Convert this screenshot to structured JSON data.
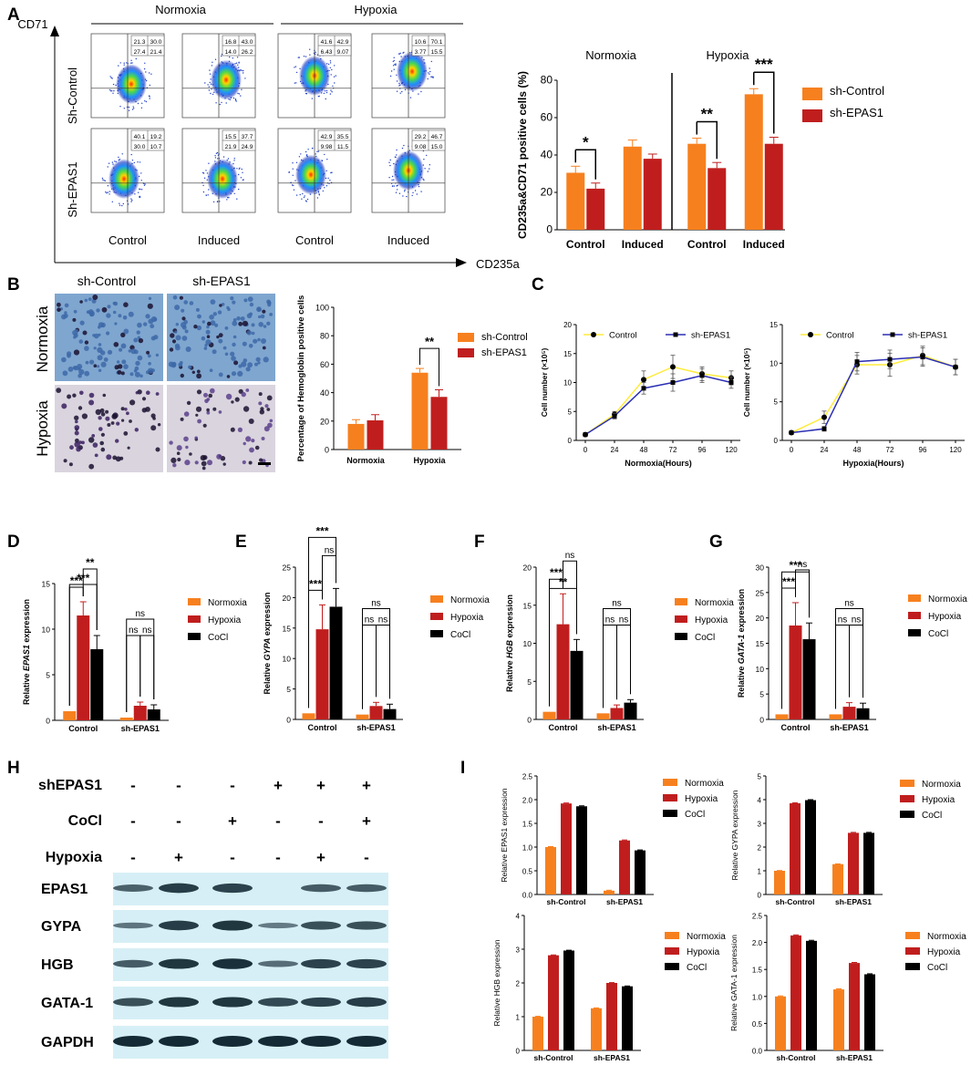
{
  "labels": [
    "A",
    "B",
    "C",
    "D",
    "E",
    "F",
    "G",
    "H",
    "I"
  ],
  "colors": {
    "orange": "#F7801E",
    "red": "#C01E1E",
    "black": "#000000",
    "yellow": "#FFEB3B",
    "blue": "#2B2FB3",
    "blot_bg": "#D6EFF6",
    "stain_top": "#7FA6CF",
    "stain_bottom": "#D9D4DE"
  },
  "panelA": {
    "y_axis_label": "CD71",
    "x_axis_label": "CD235a",
    "group_titles": [
      "Normoxia",
      "Hypoxia"
    ],
    "row_labels": [
      "Sh-Control",
      "Sh-EPAS1"
    ],
    "col_labels": [
      "Control",
      "Induced",
      "Control",
      "Induced"
    ],
    "quadrants": [
      [
        [
          "21.3",
          "30.0",
          "27.4",
          "21.4"
        ],
        [
          "16.8",
          "43.0",
          "14.0",
          "26.2"
        ],
        [
          "41.6",
          "42.9",
          "6.43",
          "9.07"
        ],
        [
          "10.6",
          "70.1",
          "3.77",
          "15.5"
        ]
      ],
      [
        [
          "40.1",
          "19.2",
          "30.0",
          "10.7"
        ],
        [
          "15.5",
          "37.7",
          "21.9",
          "24.9"
        ],
        [
          "42.9",
          "35.5",
          "9.98",
          "11.5"
        ],
        [
          "29.2",
          "46.7",
          "9.08",
          "15.0"
        ]
      ]
    ]
  },
  "panelB": {
    "col_labels": [
      "sh-Control",
      "sh-EPAS1"
    ],
    "row_labels": [
      "Normoxia",
      "Hypoxia"
    ]
  },
  "western": {
    "conditions": [
      {
        "name": "shEPAS1",
        "values": [
          "-",
          "-",
          "-",
          "+",
          "+",
          "+"
        ]
      },
      {
        "name": "CoCl",
        "values": [
          "-",
          "-",
          "+",
          "-",
          "-",
          "+"
        ]
      },
      {
        "name": "Hypoxia",
        "values": [
          "-",
          "+",
          "-",
          "-",
          "+",
          "-"
        ]
      }
    ],
    "bands": [
      {
        "name": "EPAS1",
        "intensity": [
          0.55,
          0.85,
          0.8,
          0.0,
          0.6,
          0.6
        ]
      },
      {
        "name": "GYPA",
        "intensity": [
          0.4,
          0.85,
          0.9,
          0.35,
          0.7,
          0.7
        ]
      },
      {
        "name": "HGB",
        "intensity": [
          0.6,
          0.9,
          0.95,
          0.45,
          0.8,
          0.8
        ]
      },
      {
        "name": "GATA-1",
        "intensity": [
          0.7,
          0.9,
          0.9,
          0.75,
          0.8,
          0.85
        ]
      },
      {
        "name": "GAPDH",
        "intensity": [
          1.0,
          1.0,
          1.0,
          1.0,
          1.0,
          1.0
        ]
      }
    ]
  },
  "chart_data": [
    {
      "id": "A",
      "type": "bar",
      "categories": [
        "Control",
        "Induced",
        "Control",
        "Induced"
      ],
      "group_titles": [
        "Normoxia",
        "Hypoxia"
      ],
      "series": [
        {
          "name": "sh-Control",
          "values": [
            30.5,
            44.5,
            46,
            72.5
          ],
          "errors": [
            3.5,
            3.5,
            3,
            3
          ]
        },
        {
          "name": "sh-EPAS1",
          "values": [
            22,
            38,
            33,
            46
          ],
          "errors": [
            3,
            2.5,
            3,
            3.5
          ]
        }
      ],
      "ylabel": "CD235a&CD71 positive cells (%)",
      "ylim": [
        0,
        80
      ],
      "yticks": [
        "0",
        "20",
        "40",
        "60",
        "80"
      ],
      "legend": "right",
      "annotations": [
        {
          "text": "*",
          "cat": 0
        },
        {
          "text": "**",
          "cat": 2
        },
        {
          "text": "***",
          "cat": 3
        }
      ]
    },
    {
      "id": "B",
      "type": "bar",
      "categories": [
        "Normoxia",
        "Hypoxia"
      ],
      "series": [
        {
          "name": "sh-Control",
          "values": [
            18,
            54
          ],
          "errors": [
            3,
            3
          ]
        },
        {
          "name": "sh-EPAS1",
          "values": [
            20.5,
            37
          ],
          "errors": [
            4,
            5
          ]
        }
      ],
      "ylabel": "Percentage of Hemoglobin positive cells",
      "ylim": [
        0,
        100
      ],
      "yticks": [
        "0",
        "20",
        "40",
        "60",
        "80",
        "100"
      ],
      "legend": "right",
      "annotations": [
        {
          "text": "**",
          "cat": 1
        }
      ]
    },
    {
      "id": "C1",
      "type": "line",
      "x": [
        0,
        24,
        48,
        72,
        96,
        120
      ],
      "xlabel": "Normoxia(Hours)",
      "ylabel": "Cell number (×10⁵)",
      "ylim": [
        0,
        20
      ],
      "yticks": [
        "0",
        "5",
        "10",
        "15",
        "20"
      ],
      "series": [
        {
          "name": "Control",
          "values": [
            1,
            4.5,
            10.5,
            12.7,
            11.5,
            10.8
          ],
          "errors": [
            0.2,
            0.5,
            1.5,
            2,
            1.2,
            1.2
          ]
        },
        {
          "name": "sh-EPAS1",
          "values": [
            1,
            4.2,
            9,
            10,
            11.2,
            10
          ],
          "errors": [
            0.2,
            0.5,
            1,
            1.5,
            1.2,
            1
          ]
        }
      ]
    },
    {
      "id": "C2",
      "type": "line",
      "x": [
        0,
        24,
        48,
        72,
        96,
        120
      ],
      "xlabel": "Hypoxia(Hours)",
      "ylabel": "Cell number (×10⁵)",
      "ylim": [
        0,
        15
      ],
      "yticks": [
        "0",
        "5",
        "10",
        "15"
      ],
      "series": [
        {
          "name": "Control",
          "values": [
            1,
            3,
            9.8,
            9.8,
            11,
            9.5
          ],
          "errors": [
            0.2,
            0.8,
            1.2,
            1.5,
            1.2,
            1
          ]
        },
        {
          "name": "sh-EPAS1",
          "values": [
            1,
            1.5,
            10.2,
            10.5,
            10.8,
            9.5
          ],
          "errors": [
            0.2,
            0.3,
            1.2,
            1.2,
            1.2,
            1
          ]
        }
      ]
    },
    {
      "id": "D",
      "type": "bar",
      "categories": [
        "Control",
        "sh-EPAS1"
      ],
      "ylabel_pre": "Relative ",
      "ylabel_gene": "EPAS1",
      "ylabel_post": " expression",
      "ylim": [
        0,
        15
      ],
      "yticks": [
        "0",
        "5",
        "10",
        "15"
      ],
      "series": [
        {
          "name": "Normoxia",
          "values": [
            1,
            0.3
          ],
          "errors": [
            0,
            0
          ]
        },
        {
          "name": "Hypoxia",
          "values": [
            11.5,
            1.6
          ],
          "errors": [
            1.5,
            0.4
          ]
        },
        {
          "name": "CoCl",
          "values": [
            7.8,
            1.2
          ],
          "errors": [
            1.5,
            0.5
          ]
        }
      ],
      "sig": [
        {
          "cat": 0,
          "a": 0,
          "b": 1,
          "t": "***",
          "lvl": 0
        },
        {
          "cat": 0,
          "a": 1,
          "b": 2,
          "t": "**",
          "lvl": 1
        },
        {
          "cat": 0,
          "a": 0,
          "b": 2,
          "t": "***",
          "lvl": 2
        },
        {
          "cat": 1,
          "a": 0,
          "b": 1,
          "t": "ns",
          "lvl": 0
        },
        {
          "cat": 1,
          "a": 1,
          "b": 2,
          "t": "ns",
          "lvl": 0
        },
        {
          "cat": 1,
          "a": 0,
          "b": 2,
          "t": "ns",
          "lvl": 1
        }
      ]
    },
    {
      "id": "E",
      "type": "bar",
      "categories": [
        "Control",
        "sh-EPAS1"
      ],
      "ylabel_pre": "Relative ",
      "ylabel_gene": "GYPA",
      "ylabel_post": " expression",
      "ylim": [
        0,
        25
      ],
      "yticks": [
        "0",
        "5",
        "10",
        "15",
        "20",
        "25"
      ],
      "series": [
        {
          "name": "Normoxia",
          "values": [
            1,
            0.8
          ],
          "errors": [
            0,
            0
          ]
        },
        {
          "name": "Hypoxia",
          "values": [
            14.8,
            2.2
          ],
          "errors": [
            4,
            0.6
          ]
        },
        {
          "name": "CoCl",
          "values": [
            18.5,
            1.7
          ],
          "errors": [
            3,
            0.8
          ]
        }
      ],
      "sig": [
        {
          "cat": 0,
          "a": 0,
          "b": 1,
          "t": "***",
          "lvl": 0
        },
        {
          "cat": 0,
          "a": 1,
          "b": 2,
          "t": "ns",
          "lvl": 1
        },
        {
          "cat": 0,
          "a": 0,
          "b": 2,
          "t": "***",
          "lvl": 2
        },
        {
          "cat": 1,
          "a": 0,
          "b": 1,
          "t": "ns",
          "lvl": 0
        },
        {
          "cat": 1,
          "a": 1,
          "b": 2,
          "t": "ns",
          "lvl": 0
        },
        {
          "cat": 1,
          "a": 0,
          "b": 2,
          "t": "ns",
          "lvl": 1
        }
      ]
    },
    {
      "id": "F",
      "type": "bar",
      "categories": [
        "Control",
        "sh-EPAS1"
      ],
      "ylabel_pre": "Relative ",
      "ylabel_gene": "HGB",
      "ylabel_post": " expression",
      "ylim": [
        0,
        20
      ],
      "yticks": [
        "0",
        "5",
        "10",
        "15",
        "20"
      ],
      "series": [
        {
          "name": "Normoxia",
          "values": [
            1,
            0.8
          ],
          "errors": [
            0,
            0
          ]
        },
        {
          "name": "Hypoxia",
          "values": [
            12.5,
            1.5
          ],
          "errors": [
            4,
            0.4
          ]
        },
        {
          "name": "CoCl",
          "values": [
            9,
            2.2
          ],
          "errors": [
            1.5,
            0.4
          ]
        }
      ],
      "sig": [
        {
          "cat": 0,
          "a": 0,
          "b": 1,
          "t": "***",
          "lvl": 0
        },
        {
          "cat": 0,
          "a": 1,
          "b": 2,
          "t": "ns",
          "lvl": 1
        },
        {
          "cat": 0,
          "a": 0,
          "b": 2,
          "t": "**",
          "lvl": 2
        },
        {
          "cat": 1,
          "a": 0,
          "b": 1,
          "t": "ns",
          "lvl": 0
        },
        {
          "cat": 1,
          "a": 1,
          "b": 2,
          "t": "ns",
          "lvl": 0
        },
        {
          "cat": 1,
          "a": 0,
          "b": 2,
          "t": "ns",
          "lvl": 1
        }
      ]
    },
    {
      "id": "G",
      "type": "bar",
      "categories": [
        "Control",
        "sh-EPAS1"
      ],
      "ylabel_pre": "Relative ",
      "ylabel_gene": "GATA-1",
      "ylabel_post": " expression",
      "ylim": [
        0,
        30
      ],
      "yticks": [
        "0",
        "5",
        "10",
        "15",
        "20",
        "25",
        "30"
      ],
      "series": [
        {
          "name": "Normoxia",
          "values": [
            1,
            1
          ],
          "errors": [
            0,
            0
          ]
        },
        {
          "name": "Hypoxia",
          "values": [
            18.5,
            2.5
          ],
          "errors": [
            4.5,
            0.8
          ]
        },
        {
          "name": "CoCl",
          "values": [
            15.8,
            2.2
          ],
          "errors": [
            3.2,
            1
          ]
        }
      ],
      "sig": [
        {
          "cat": 0,
          "a": 0,
          "b": 1,
          "t": "***",
          "lvl": 0
        },
        {
          "cat": 0,
          "a": 1,
          "b": 2,
          "t": "ns",
          "lvl": 1
        },
        {
          "cat": 0,
          "a": 0,
          "b": 2,
          "t": "***",
          "lvl": 2
        },
        {
          "cat": 1,
          "a": 0,
          "b": 1,
          "t": "ns",
          "lvl": 0
        },
        {
          "cat": 1,
          "a": 1,
          "b": 2,
          "t": "ns",
          "lvl": 0
        },
        {
          "cat": 1,
          "a": 0,
          "b": 2,
          "t": "ns",
          "lvl": 1
        }
      ]
    },
    {
      "id": "I1",
      "type": "bar",
      "categories": [
        "sh-Control",
        "sh-EPAS1"
      ],
      "ylabel": "Relative EPAS1 expression",
      "ylim": [
        0,
        2.5
      ],
      "yticks": [
        "0.0",
        "0.5",
        "1.0",
        "1.5",
        "2.0",
        "2.5"
      ],
      "series": [
        {
          "name": "Normoxia",
          "values": [
            1,
            0.08
          ],
          "errors": [
            0.01,
            0.01
          ]
        },
        {
          "name": "Hypoxia",
          "values": [
            1.92,
            1.14
          ],
          "errors": [
            0.01,
            0.01
          ]
        },
        {
          "name": "CoCl",
          "values": [
            1.86,
            0.93
          ],
          "errors": [
            0.01,
            0.01
          ]
        }
      ]
    },
    {
      "id": "I2",
      "type": "bar",
      "categories": [
        "sh-Control",
        "sh-EPAS1"
      ],
      "ylabel": "Relative GYPA expression",
      "ylim": [
        0,
        5
      ],
      "yticks": [
        "0",
        "1",
        "2",
        "3",
        "4",
        "5"
      ],
      "series": [
        {
          "name": "Normoxia",
          "values": [
            1,
            1.28
          ],
          "errors": [
            0.01,
            0.01
          ]
        },
        {
          "name": "Hypoxia",
          "values": [
            3.85,
            2.6
          ],
          "errors": [
            0.02,
            0.02
          ]
        },
        {
          "name": "CoCl",
          "values": [
            3.98,
            2.6
          ],
          "errors": [
            0.02,
            0.02
          ]
        }
      ]
    },
    {
      "id": "I3",
      "type": "bar",
      "categories": [
        "sh-Control",
        "sh-EPAS1"
      ],
      "ylabel": "Relative HGB expression",
      "ylim": [
        0,
        4
      ],
      "yticks": [
        "0",
        "1",
        "2",
        "3",
        "4"
      ],
      "series": [
        {
          "name": "Normoxia",
          "values": [
            1,
            1.25
          ],
          "errors": [
            0.01,
            0.01
          ]
        },
        {
          "name": "Hypoxia",
          "values": [
            2.82,
            2
          ],
          "errors": [
            0.01,
            0.01
          ]
        },
        {
          "name": "CoCl",
          "values": [
            2.96,
            1.9
          ],
          "errors": [
            0.01,
            0.01
          ]
        }
      ]
    },
    {
      "id": "I4",
      "type": "bar",
      "categories": [
        "sh-Control",
        "sh-EPAS1"
      ],
      "ylabel": "Relative GATA-1 expression",
      "ylim": [
        0,
        2.5
      ],
      "yticks": [
        "0.0",
        "0.5",
        "1.0",
        "1.5",
        "2.0",
        "2.5"
      ],
      "series": [
        {
          "name": "Normoxia",
          "values": [
            1,
            1.13
          ],
          "errors": [
            0.01,
            0.01
          ]
        },
        {
          "name": "Hypoxia",
          "values": [
            2.13,
            1.62
          ],
          "errors": [
            0.01,
            0.01
          ]
        },
        {
          "name": "CoCl",
          "values": [
            2.03,
            1.41
          ],
          "errors": [
            0.01,
            0.01
          ]
        }
      ]
    }
  ]
}
